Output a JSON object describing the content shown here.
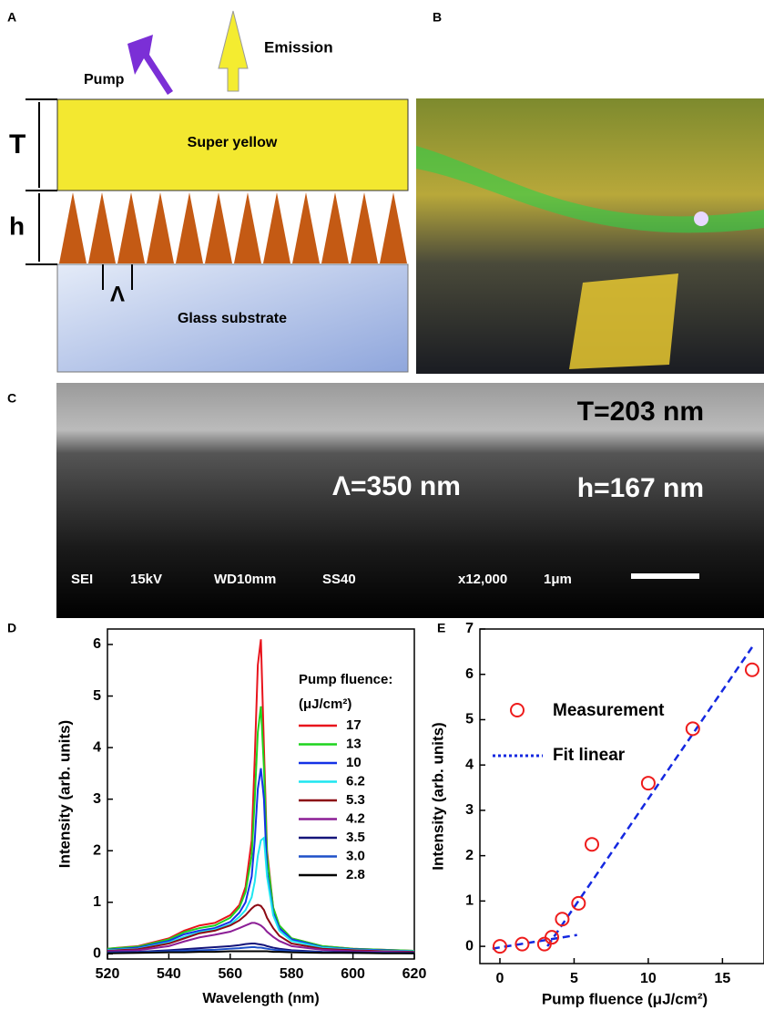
{
  "panel_labels": {
    "a": "A",
    "b": "B",
    "c": "C",
    "d": "D",
    "e": "E"
  },
  "diagram": {
    "pump": "Pump",
    "emission": "Emission",
    "t": "T",
    "h": "h",
    "lambda": "Λ",
    "top_layer": "Super yellow",
    "substrate": "Glass substrate"
  },
  "sem": {
    "t": "T=203 nm",
    "lambda": "Λ=350 nm",
    "h": "h=167 nm",
    "info": [
      "SEI",
      "15kV",
      "WD10mm",
      "SS40",
      "x12,000",
      "1μm"
    ]
  },
  "chart_data": [
    {
      "type": "line",
      "xlabel": "Wavelength (nm)",
      "ylabel": "Intensity (arb. units)",
      "legend_title": "Pump fluence:",
      "legend_unit": "(μJ/cm²)",
      "x": [
        520,
        530,
        540,
        545,
        550,
        555,
        560,
        563,
        565,
        567,
        568,
        569,
        570,
        571,
        572,
        574,
        576,
        580,
        590,
        600,
        610,
        620
      ],
      "xlim": [
        520,
        620
      ],
      "xticks": [
        520,
        540,
        560,
        580,
        600,
        620
      ],
      "ylim": [
        -0.1,
        6.3
      ],
      "yticks": [
        0,
        1,
        2,
        3,
        4,
        5,
        6
      ],
      "series": [
        {
          "name": "17",
          "color": "#e8141c",
          "values": [
            0.1,
            0.15,
            0.3,
            0.45,
            0.55,
            0.6,
            0.75,
            0.95,
            1.3,
            2.2,
            3.8,
            5.6,
            6.1,
            4.0,
            2.0,
            0.9,
            0.55,
            0.3,
            0.15,
            0.1,
            0.08,
            0.06
          ]
        },
        {
          "name": "13",
          "color": "#1ed41e",
          "values": [
            0.1,
            0.14,
            0.28,
            0.42,
            0.5,
            0.55,
            0.7,
            0.9,
            1.2,
            1.9,
            3.0,
            4.3,
            4.8,
            3.6,
            1.9,
            0.9,
            0.55,
            0.3,
            0.15,
            0.1,
            0.08,
            0.06
          ]
        },
        {
          "name": "10",
          "color": "#1432e6",
          "values": [
            0.08,
            0.12,
            0.25,
            0.38,
            0.45,
            0.5,
            0.62,
            0.8,
            1.0,
            1.5,
            2.2,
            3.2,
            3.6,
            3.0,
            1.6,
            0.8,
            0.5,
            0.28,
            0.13,
            0.09,
            0.07,
            0.05
          ]
        },
        {
          "name": "6.2",
          "color": "#1ee6f0",
          "values": [
            0.07,
            0.1,
            0.22,
            0.33,
            0.42,
            0.47,
            0.57,
            0.72,
            0.85,
            1.1,
            1.4,
            1.9,
            2.2,
            2.25,
            1.5,
            0.75,
            0.45,
            0.25,
            0.12,
            0.08,
            0.06,
            0.05
          ]
        },
        {
          "name": "5.3",
          "color": "#8c0a14",
          "values": [
            0.06,
            0.09,
            0.2,
            0.3,
            0.4,
            0.45,
            0.55,
            0.65,
            0.75,
            0.88,
            0.93,
            0.95,
            0.93,
            0.85,
            0.7,
            0.5,
            0.35,
            0.2,
            0.1,
            0.07,
            0.05,
            0.04
          ]
        },
        {
          "name": "4.2",
          "color": "#8c1e96",
          "values": [
            0.05,
            0.07,
            0.15,
            0.24,
            0.32,
            0.37,
            0.43,
            0.5,
            0.55,
            0.6,
            0.6,
            0.58,
            0.55,
            0.5,
            0.43,
            0.33,
            0.25,
            0.15,
            0.08,
            0.05,
            0.04,
            0.03
          ]
        },
        {
          "name": "3.5",
          "color": "#14147a",
          "values": [
            0.03,
            0.04,
            0.07,
            0.09,
            0.11,
            0.13,
            0.15,
            0.17,
            0.19,
            0.2,
            0.2,
            0.19,
            0.18,
            0.17,
            0.15,
            0.12,
            0.1,
            0.07,
            0.04,
            0.03,
            0.02,
            0.02
          ]
        },
        {
          "name": "3.0",
          "color": "#1e50c8",
          "values": [
            0.02,
            0.03,
            0.05,
            0.06,
            0.07,
            0.08,
            0.1,
            0.11,
            0.12,
            0.13,
            0.13,
            0.12,
            0.12,
            0.11,
            0.1,
            0.08,
            0.07,
            0.05,
            0.03,
            0.02,
            0.02,
            0.01
          ]
        },
        {
          "name": "2.8",
          "color": "#000000",
          "values": [
            0.01,
            0.02,
            0.03,
            0.03,
            0.04,
            0.04,
            0.05,
            0.05,
            0.05,
            0.05,
            0.05,
            0.05,
            0.05,
            0.05,
            0.05,
            0.04,
            0.04,
            0.03,
            0.02,
            0.02,
            0.01,
            0.01
          ]
        }
      ]
    },
    {
      "type": "scatter",
      "xlabel": "Pump fluence (μJ/cm²)",
      "ylabel": "Intensity (arb. units)",
      "xlim": [
        -1.35,
        17.8
      ],
      "xticks": [
        0,
        5,
        10,
        15
      ],
      "ylim": [
        -0.38,
        7
      ],
      "yticks": [
        0,
        1,
        2,
        3,
        4,
        5,
        6,
        7
      ],
      "series": [
        {
          "name": "Measurement",
          "color": "#ee1c1c",
          "x": [
            0,
            1.5,
            3,
            3.5,
            4.2,
            5.3,
            6.2,
            10,
            13,
            17
          ],
          "values": [
            0,
            0.05,
            0.05,
            0.2,
            0.6,
            0.95,
            2.25,
            3.6,
            4.8,
            6.1
          ]
        }
      ],
      "fit": {
        "name": "Fit linear",
        "color": "#1428e0",
        "segments": [
          {
            "x": [
              -0.5,
              5.2
            ],
            "values": [
              -0.05,
              0.25
            ]
          },
          {
            "x": [
              3.2,
              17
            ],
            "values": [
              0,
              6.6
            ]
          }
        ]
      }
    }
  ]
}
